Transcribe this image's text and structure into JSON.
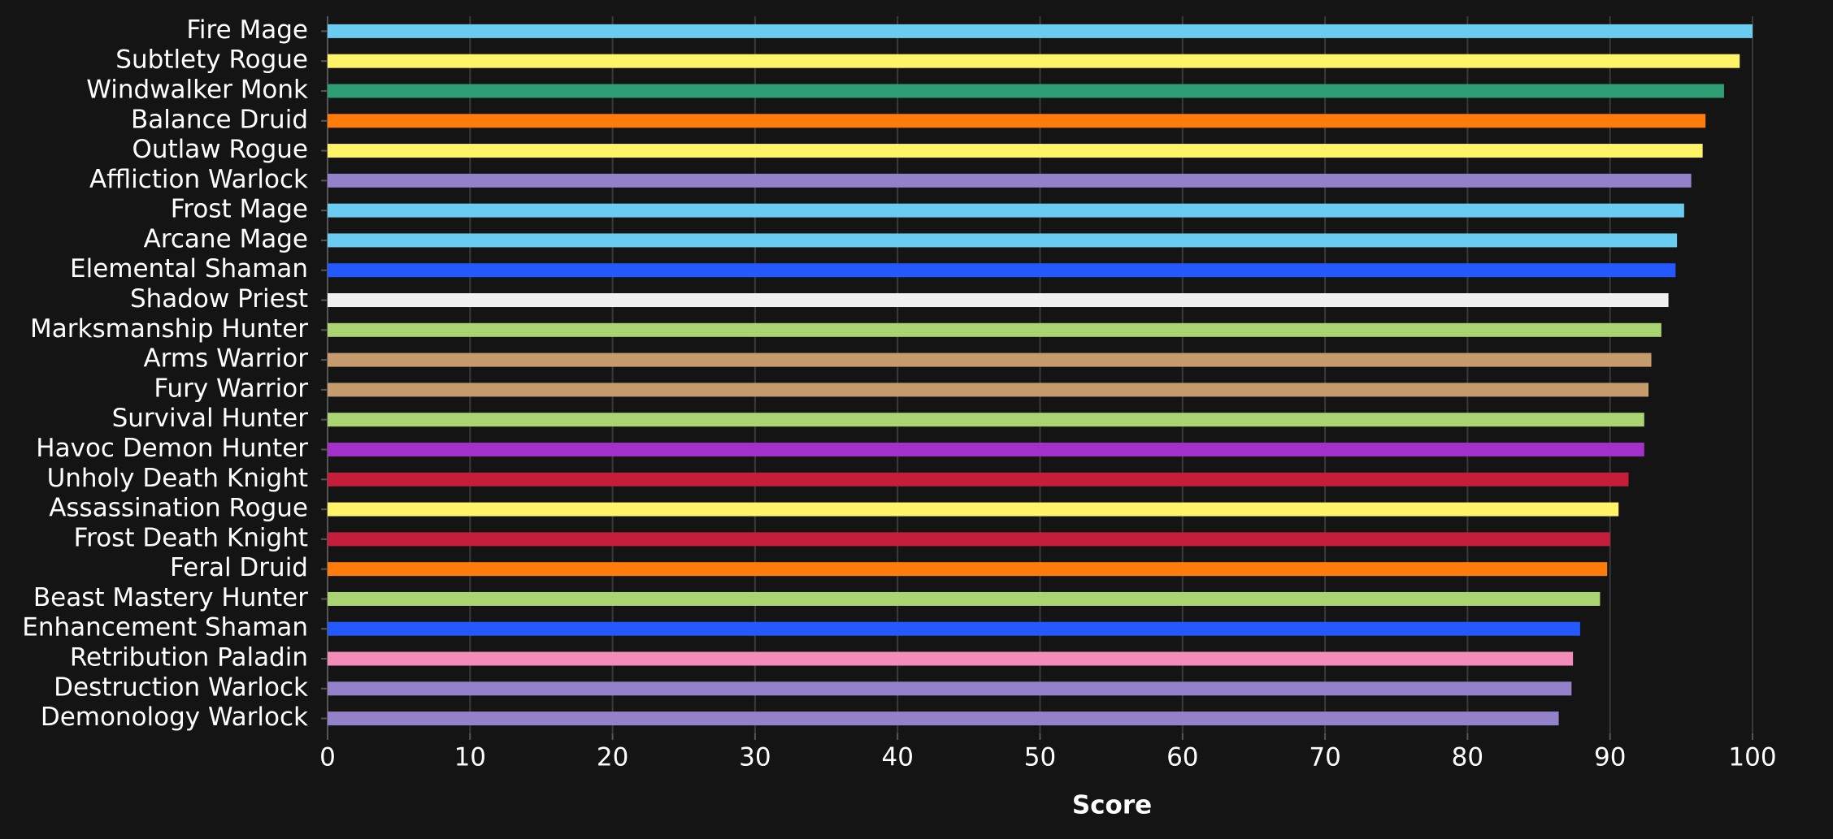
{
  "chart_data": {
    "type": "barh",
    "categories": [
      "Fire Mage",
      "Subtlety Rogue",
      "Windwalker Monk",
      "Balance Druid",
      "Outlaw Rogue",
      "Affliction Warlock",
      "Frost Mage",
      "Arcane Mage",
      "Elemental Shaman",
      "Shadow Priest",
      "Marksmanship Hunter",
      "Arms Warrior",
      "Fury Warrior",
      "Survival Hunter",
      "Havoc Demon Hunter",
      "Unholy Death Knight",
      "Assassination Rogue",
      "Frost Death Knight",
      "Feral Druid",
      "Beast Mastery Hunter",
      "Enhancement Shaman",
      "Retribution Paladin",
      "Destruction Warlock",
      "Demonology Warlock"
    ],
    "values": [
      100,
      99.1,
      98.0,
      96.7,
      96.5,
      95.7,
      95.2,
      94.7,
      94.6,
      94.1,
      93.6,
      92.9,
      92.7,
      92.4,
      92.4,
      91.3,
      90.6,
      90.0,
      89.8,
      89.3,
      87.9,
      87.4,
      87.3,
      86.4
    ],
    "colors": [
      "#69ccf0",
      "#fff468",
      "#2e9e74",
      "#ff7c0a",
      "#fff468",
      "#9382c9",
      "#69ccf0",
      "#69ccf0",
      "#2459ff",
      "#f0f0f0",
      "#aad372",
      "#c69b6d",
      "#c69b6d",
      "#aad372",
      "#a330c9",
      "#c41e3a",
      "#fff468",
      "#c41e3a",
      "#ff7c0a",
      "#aad372",
      "#2459ff",
      "#f48cba",
      "#9382c9",
      "#9382c9"
    ],
    "xlim": [
      0,
      100
    ],
    "xticks": [
      0,
      10,
      20,
      30,
      40,
      50,
      60,
      70,
      80,
      90,
      100
    ],
    "x_label": "Score",
    "grid": true
  }
}
